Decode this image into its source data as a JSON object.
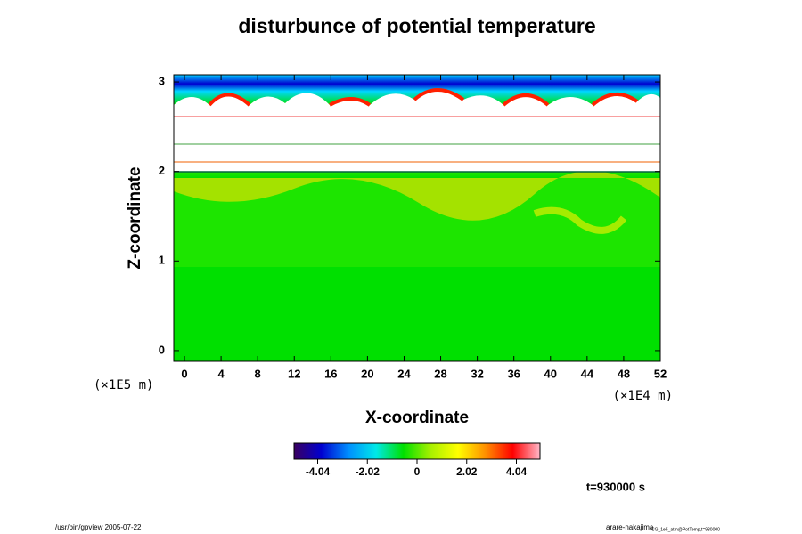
{
  "chart_data": {
    "type": "heatmap",
    "title": "disturbunce of potential temperature",
    "x_label": "X-coordinate",
    "y_label": "Z-coordinate",
    "x_unit": "(×1E4 m)",
    "y_unit": "(×1E5 m)",
    "xlim": [
      -1.17,
      52
    ],
    "xticks": [
      0,
      4,
      8,
      12,
      16,
      20,
      24,
      28,
      32,
      36,
      40,
      44,
      48,
      52
    ],
    "ylim": [
      -0.12,
      3.08
    ],
    "yticks": [
      0,
      1,
      2,
      3
    ],
    "colorbar": {
      "lim": [
        -5,
        5
      ],
      "ticks": [
        -4.04,
        -2.02,
        0,
        2.02,
        4.04
      ],
      "colors": [
        "#3a0060",
        "#0000d0",
        "#0090ff",
        "#00e8e8",
        "#00e000",
        "#a8f000",
        "#ffff00",
        "#ff9000",
        "#ff0000",
        "#ffb8c8"
      ]
    },
    "time_label": "t=930000 s"
  },
  "footer": {
    "left": "/usr/bin/gpview 2005-07-22",
    "right": "arare-nakajima",
    "right_small": "CG_1e5_atm@PotTemp,t=930000"
  }
}
